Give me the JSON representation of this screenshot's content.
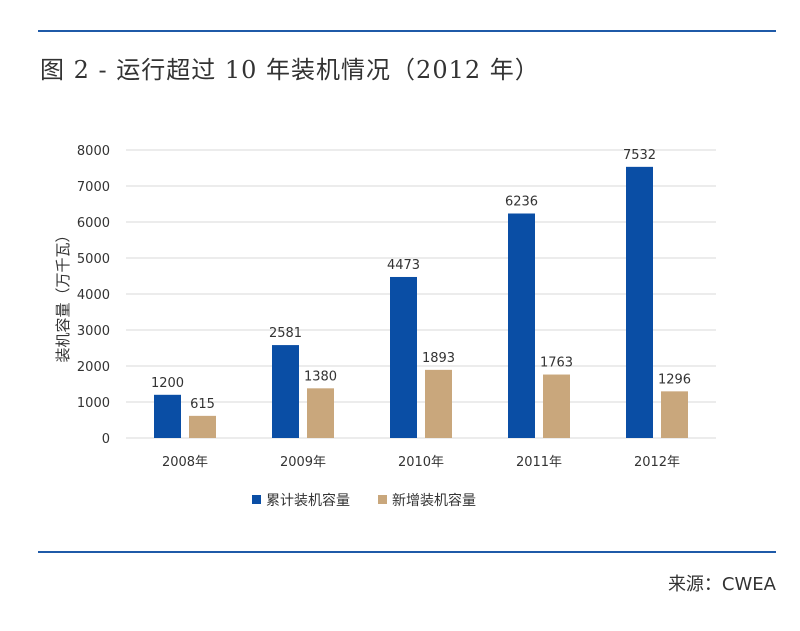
{
  "figure": {
    "title": "图 2 - 运行超过 10 年装机情况（2012 年）",
    "source": "来源：CWEA"
  },
  "colors": {
    "rule": "#1f5aa8",
    "series_cumulative": "#0a4ea5",
    "series_new": "#c9a77c",
    "grid": "#d9d9d9"
  },
  "chart_data": {
    "type": "bar",
    "categories": [
      "2008年",
      "2009年",
      "2010年",
      "2011年",
      "2012年"
    ],
    "series": [
      {
        "name": "累计装机容量",
        "values": [
          1200,
          2581,
          4473,
          6236,
          7532
        ]
      },
      {
        "name": "新增装机容量",
        "values": [
          615,
          1380,
          1893,
          1763,
          1296
        ]
      }
    ],
    "ylabel": "装机容量（万千瓦）",
    "ylim": [
      0,
      8000
    ],
    "yticks": [
      0,
      1000,
      2000,
      3000,
      4000,
      5000,
      6000,
      7000,
      8000
    ],
    "grid": true,
    "legend_position": "bottom",
    "data_labels": true
  }
}
